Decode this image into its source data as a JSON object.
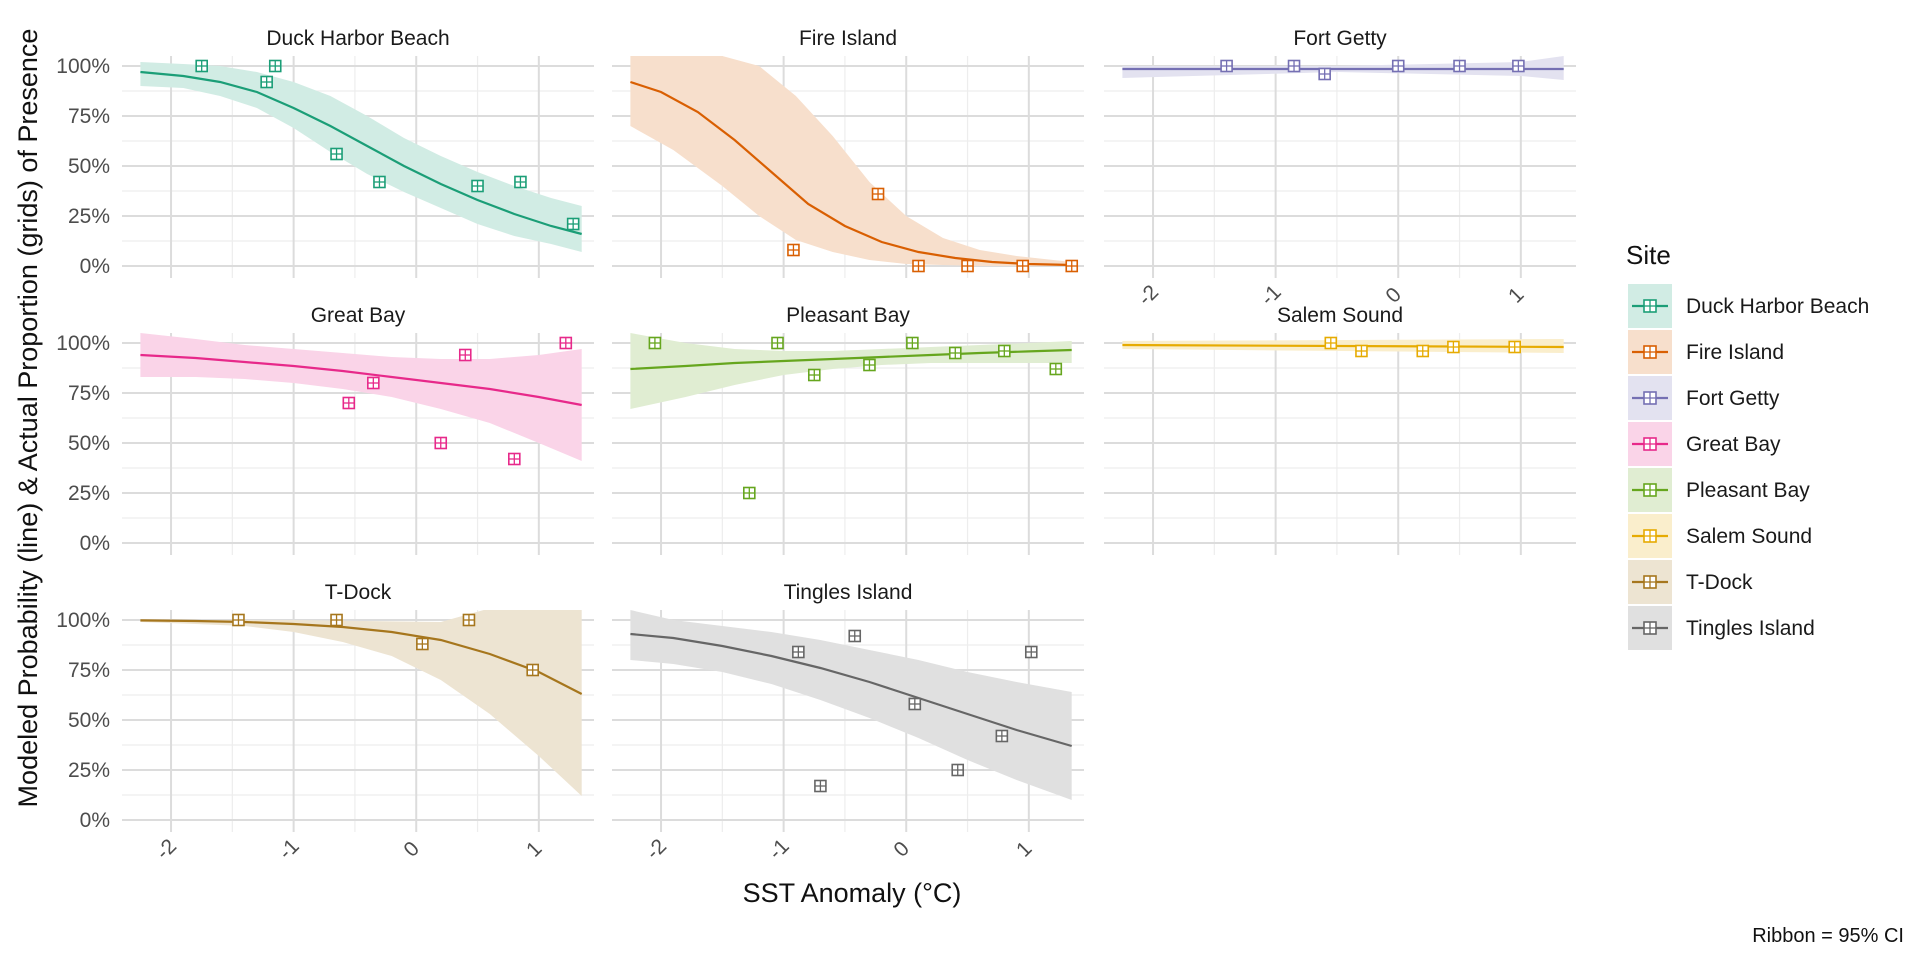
{
  "chart_data": {
    "type": "scatter",
    "title": "",
    "xlabel": "SST Anomaly (°C)",
    "ylabel": "Modeled Probability (line) & Actual Proportion (grids) of Presence",
    "xlim": [
      -2.4,
      1.45
    ],
    "ylim": [
      -0.06,
      1.05
    ],
    "x_ticks": [
      -2,
      -1,
      0,
      1
    ],
    "x_tick_labels": [
      "-2",
      "-1",
      "0",
      "1"
    ],
    "y_ticks": [
      0,
      0.25,
      0.5,
      0.75,
      1.0
    ],
    "y_tick_labels": [
      "0%",
      "25%",
      "50%",
      "75%",
      "100%"
    ],
    "grid": true,
    "legend": {
      "title": "Site",
      "position": "right"
    },
    "caption": "Ribbon = 95% CI",
    "panels": [
      {
        "name": "Duck Harbor Beach",
        "color": "#1b9e77",
        "points": [
          [
            -1.75,
            1.0
          ],
          [
            -1.15,
            1.0
          ],
          [
            -1.22,
            0.92
          ],
          [
            -0.65,
            0.56
          ],
          [
            -0.3,
            0.42
          ],
          [
            0.5,
            0.4
          ],
          [
            0.85,
            0.42
          ],
          [
            1.28,
            0.21
          ]
        ],
        "curve": [
          [
            -2.25,
            0.97
          ],
          [
            -1.9,
            0.95
          ],
          [
            -1.6,
            0.92
          ],
          [
            -1.3,
            0.87
          ],
          [
            -1.0,
            0.79
          ],
          [
            -0.7,
            0.7
          ],
          [
            -0.4,
            0.6
          ],
          [
            -0.1,
            0.5
          ],
          [
            0.2,
            0.41
          ],
          [
            0.5,
            0.33
          ],
          [
            0.8,
            0.26
          ],
          [
            1.1,
            0.2
          ],
          [
            1.35,
            0.16
          ]
        ],
        "ci_upper": [
          [
            -2.25,
            1.02
          ],
          [
            -1.9,
            1.01
          ],
          [
            -1.6,
            1.0
          ],
          [
            -1.3,
            0.97
          ],
          [
            -1.0,
            0.92
          ],
          [
            -0.7,
            0.85
          ],
          [
            -0.4,
            0.75
          ],
          [
            -0.1,
            0.64
          ],
          [
            0.2,
            0.55
          ],
          [
            0.5,
            0.47
          ],
          [
            0.8,
            0.4
          ],
          [
            1.1,
            0.34
          ],
          [
            1.35,
            0.3
          ]
        ],
        "ci_lower": [
          [
            -2.25,
            0.9
          ],
          [
            -1.9,
            0.89
          ],
          [
            -1.6,
            0.85
          ],
          [
            -1.3,
            0.79
          ],
          [
            -1.0,
            0.69
          ],
          [
            -0.7,
            0.57
          ],
          [
            -0.4,
            0.46
          ],
          [
            -0.1,
            0.37
          ],
          [
            0.2,
            0.29
          ],
          [
            0.5,
            0.21
          ],
          [
            0.8,
            0.15
          ],
          [
            1.1,
            0.11
          ],
          [
            1.35,
            0.07
          ]
        ]
      },
      {
        "name": "Fire Island",
        "color": "#d95f02",
        "points": [
          [
            -0.92,
            0.08
          ],
          [
            -0.23,
            0.36
          ],
          [
            0.1,
            0.0
          ],
          [
            0.5,
            0.0
          ],
          [
            0.95,
            0.0
          ],
          [
            1.35,
            0.0
          ]
        ],
        "curve": [
          [
            -2.25,
            0.92
          ],
          [
            -2.0,
            0.87
          ],
          [
            -1.7,
            0.77
          ],
          [
            -1.4,
            0.63
          ],
          [
            -1.1,
            0.47
          ],
          [
            -0.8,
            0.31
          ],
          [
            -0.5,
            0.2
          ],
          [
            -0.2,
            0.12
          ],
          [
            0.1,
            0.07
          ],
          [
            0.4,
            0.04
          ],
          [
            0.7,
            0.02
          ],
          [
            1.0,
            0.01
          ],
          [
            1.35,
            0.005
          ]
        ],
        "ci_upper": [
          [
            -2.25,
            1.05
          ],
          [
            -1.9,
            1.05
          ],
          [
            -1.5,
            1.05
          ],
          [
            -1.2,
            1.0
          ],
          [
            -0.9,
            0.85
          ],
          [
            -0.6,
            0.65
          ],
          [
            -0.3,
            0.42
          ],
          [
            0.0,
            0.25
          ],
          [
            0.3,
            0.14
          ],
          [
            0.6,
            0.08
          ],
          [
            0.9,
            0.05
          ],
          [
            1.2,
            0.03
          ],
          [
            1.35,
            0.02
          ]
        ],
        "ci_lower": [
          [
            -2.25,
            0.7
          ],
          [
            -1.9,
            0.58
          ],
          [
            -1.5,
            0.4
          ],
          [
            -1.2,
            0.25
          ],
          [
            -0.9,
            0.13
          ],
          [
            -0.6,
            0.07
          ],
          [
            -0.3,
            0.03
          ],
          [
            0.0,
            0.01
          ],
          [
            0.3,
            0.005
          ],
          [
            0.6,
            0.0
          ],
          [
            0.9,
            0.0
          ],
          [
            1.2,
            0.0
          ],
          [
            1.35,
            0.0
          ]
        ]
      },
      {
        "name": "Fort Getty",
        "color": "#7570b3",
        "points": [
          [
            -1.4,
            1.0
          ],
          [
            -0.85,
            1.0
          ],
          [
            -0.6,
            0.96
          ],
          [
            0.0,
            1.0
          ],
          [
            0.5,
            1.0
          ],
          [
            0.98,
            1.0
          ]
        ],
        "curve": [
          [
            -2.25,
            0.985
          ],
          [
            1.35,
            0.985
          ]
        ],
        "ci_upper": [
          [
            -2.25,
            1.0
          ],
          [
            -0.5,
            1.0
          ],
          [
            1.0,
            1.02
          ],
          [
            1.35,
            1.05
          ]
        ],
        "ci_lower": [
          [
            -2.25,
            0.94
          ],
          [
            -0.5,
            0.97
          ],
          [
            1.0,
            0.95
          ],
          [
            1.35,
            0.93
          ]
        ]
      },
      {
        "name": "Great Bay",
        "color": "#e7298a",
        "points": [
          [
            -0.55,
            0.7
          ],
          [
            -0.35,
            0.8
          ],
          [
            0.2,
            0.5
          ],
          [
            0.4,
            0.94
          ],
          [
            0.8,
            0.42
          ],
          [
            1.22,
            1.0
          ]
        ],
        "curve": [
          [
            -2.25,
            0.94
          ],
          [
            -1.8,
            0.925
          ],
          [
            -1.4,
            0.905
          ],
          [
            -1.0,
            0.885
          ],
          [
            -0.6,
            0.86
          ],
          [
            -0.2,
            0.83
          ],
          [
            0.2,
            0.8
          ],
          [
            0.6,
            0.77
          ],
          [
            1.0,
            0.73
          ],
          [
            1.35,
            0.69
          ]
        ],
        "ci_upper": [
          [
            -2.25,
            1.05
          ],
          [
            -1.8,
            1.02
          ],
          [
            -1.4,
            0.99
          ],
          [
            -1.0,
            0.97
          ],
          [
            -0.6,
            0.95
          ],
          [
            -0.2,
            0.93
          ],
          [
            0.2,
            0.92
          ],
          [
            0.6,
            0.92
          ],
          [
            1.0,
            0.94
          ],
          [
            1.35,
            0.97
          ]
        ],
        "ci_lower": [
          [
            -2.25,
            0.83
          ],
          [
            -1.8,
            0.83
          ],
          [
            -1.4,
            0.82
          ],
          [
            -1.0,
            0.8
          ],
          [
            -0.6,
            0.77
          ],
          [
            -0.2,
            0.73
          ],
          [
            0.2,
            0.67
          ],
          [
            0.6,
            0.6
          ],
          [
            1.0,
            0.5
          ],
          [
            1.35,
            0.41
          ]
        ]
      },
      {
        "name": "Pleasant Bay",
        "color": "#66a61e",
        "points": [
          [
            -2.05,
            1.0
          ],
          [
            -1.28,
            0.25
          ],
          [
            -1.05,
            1.0
          ],
          [
            -0.75,
            0.84
          ],
          [
            -0.3,
            0.89
          ],
          [
            0.05,
            1.0
          ],
          [
            0.4,
            0.95
          ],
          [
            0.8,
            0.96
          ],
          [
            1.22,
            0.87
          ]
        ],
        "curve": [
          [
            -2.25,
            0.87
          ],
          [
            -1.8,
            0.885
          ],
          [
            -1.4,
            0.9
          ],
          [
            -1.0,
            0.91
          ],
          [
            -0.6,
            0.92
          ],
          [
            -0.2,
            0.93
          ],
          [
            0.2,
            0.94
          ],
          [
            0.6,
            0.95
          ],
          [
            1.0,
            0.958
          ],
          [
            1.35,
            0.965
          ]
        ],
        "ci_upper": [
          [
            -2.25,
            1.05
          ],
          [
            -1.8,
            1.0
          ],
          [
            -1.4,
            0.97
          ],
          [
            -1.0,
            0.96
          ],
          [
            -0.6,
            0.96
          ],
          [
            -0.2,
            0.97
          ],
          [
            0.2,
            0.98
          ],
          [
            0.6,
            0.99
          ],
          [
            1.0,
            1.0
          ],
          [
            1.35,
            1.01
          ]
        ],
        "ci_lower": [
          [
            -2.25,
            0.67
          ],
          [
            -1.8,
            0.73
          ],
          [
            -1.4,
            0.79
          ],
          [
            -1.0,
            0.84
          ],
          [
            -0.6,
            0.87
          ],
          [
            -0.2,
            0.89
          ],
          [
            0.2,
            0.9
          ],
          [
            0.6,
            0.9
          ],
          [
            1.0,
            0.9
          ],
          [
            1.35,
            0.9
          ]
        ]
      },
      {
        "name": "Salem Sound",
        "color": "#e6ab02",
        "points": [
          [
            -0.55,
            1.0
          ],
          [
            -0.3,
            0.96
          ],
          [
            0.2,
            0.96
          ],
          [
            0.45,
            0.98
          ],
          [
            0.95,
            0.98
          ]
        ],
        "curve": [
          [
            -2.25,
            0.99
          ],
          [
            1.35,
            0.98
          ]
        ],
        "ci_upper": [
          [
            -2.25,
            1.01
          ],
          [
            1.35,
            1.02
          ]
        ],
        "ci_lower": [
          [
            -2.25,
            0.97
          ],
          [
            1.35,
            0.95
          ]
        ]
      },
      {
        "name": "T-Dock",
        "color": "#a6761d",
        "points": [
          [
            -1.45,
            1.0
          ],
          [
            -0.65,
            1.0
          ],
          [
            0.05,
            0.88
          ],
          [
            0.43,
            1.0
          ],
          [
            0.95,
            0.75
          ]
        ],
        "curve": [
          [
            -2.25,
            0.998
          ],
          [
            -1.8,
            0.995
          ],
          [
            -1.4,
            0.99
          ],
          [
            -1.0,
            0.98
          ],
          [
            -0.6,
            0.965
          ],
          [
            -0.2,
            0.94
          ],
          [
            0.2,
            0.9
          ],
          [
            0.6,
            0.83
          ],
          [
            1.0,
            0.74
          ],
          [
            1.35,
            0.63
          ]
        ],
        "ci_upper": [
          [
            -2.25,
            1.0
          ],
          [
            -1.0,
            1.0
          ],
          [
            0.2,
            0.99
          ],
          [
            0.55,
            1.05
          ],
          [
            1.35,
            1.05
          ]
        ],
        "ci_lower": [
          [
            -2.25,
            0.99
          ],
          [
            -1.8,
            0.98
          ],
          [
            -1.4,
            0.97
          ],
          [
            -1.0,
            0.94
          ],
          [
            -0.6,
            0.89
          ],
          [
            -0.2,
            0.82
          ],
          [
            0.2,
            0.7
          ],
          [
            0.6,
            0.53
          ],
          [
            1.0,
            0.32
          ],
          [
            1.35,
            0.12
          ]
        ]
      },
      {
        "name": "Tingles Island",
        "color": "#666666",
        "points": [
          [
            -0.88,
            0.84
          ],
          [
            -0.7,
            0.17
          ],
          [
            -0.42,
            0.92
          ],
          [
            0.07,
            0.58
          ],
          [
            0.42,
            0.25
          ],
          [
            0.78,
            0.42
          ],
          [
            1.02,
            0.84
          ]
        ],
        "curve": [
          [
            -2.25,
            0.93
          ],
          [
            -1.9,
            0.91
          ],
          [
            -1.5,
            0.87
          ],
          [
            -1.1,
            0.82
          ],
          [
            -0.7,
            0.76
          ],
          [
            -0.3,
            0.69
          ],
          [
            0.1,
            0.61
          ],
          [
            0.5,
            0.53
          ],
          [
            0.9,
            0.45
          ],
          [
            1.35,
            0.37
          ]
        ],
        "ci_upper": [
          [
            -2.25,
            1.05
          ],
          [
            -1.9,
            1.0
          ],
          [
            -1.5,
            0.97
          ],
          [
            -1.1,
            0.94
          ],
          [
            -0.7,
            0.9
          ],
          [
            -0.3,
            0.85
          ],
          [
            0.1,
            0.8
          ],
          [
            0.5,
            0.74
          ],
          [
            0.9,
            0.69
          ],
          [
            1.35,
            0.64
          ]
        ],
        "ci_lower": [
          [
            -2.25,
            0.8
          ],
          [
            -1.9,
            0.78
          ],
          [
            -1.5,
            0.74
          ],
          [
            -1.1,
            0.68
          ],
          [
            -0.7,
            0.6
          ],
          [
            -0.3,
            0.51
          ],
          [
            0.1,
            0.41
          ],
          [
            0.5,
            0.3
          ],
          [
            0.9,
            0.2
          ],
          [
            1.35,
            0.1
          ]
        ]
      }
    ]
  }
}
